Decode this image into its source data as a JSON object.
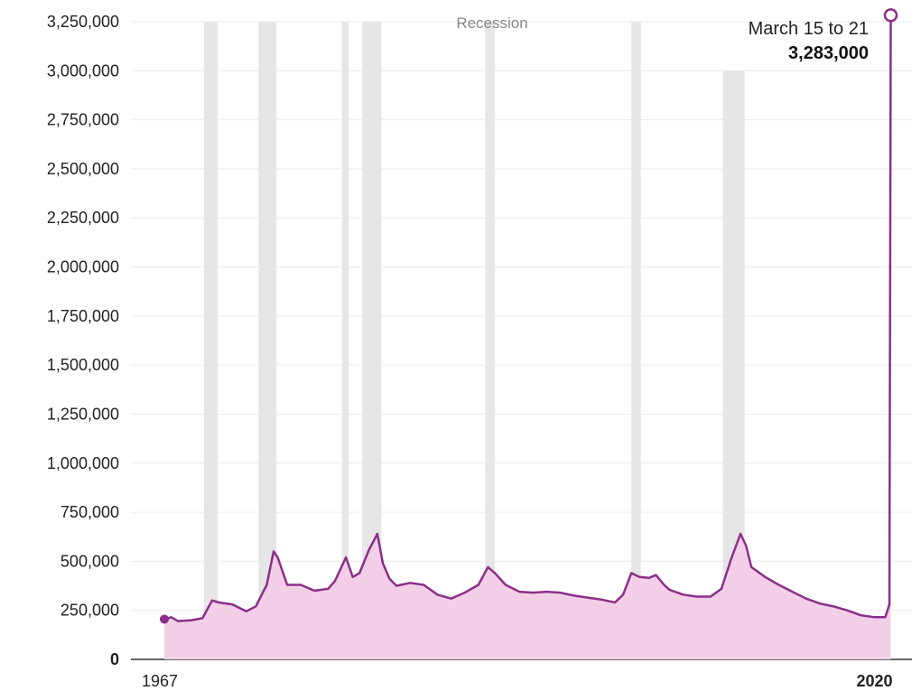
{
  "chart_data": {
    "type": "area",
    "title": "",
    "xlabel": "",
    "ylabel": "",
    "x_range": [
      1967,
      2020.3
    ],
    "ylim": [
      0,
      3250000
    ],
    "y_ticks": [
      {
        "value": 0,
        "label": "0"
      },
      {
        "value": 250000,
        "label": "250,000"
      },
      {
        "value": 500000,
        "label": "500,000"
      },
      {
        "value": 750000,
        "label": "750,000"
      },
      {
        "value": 1000000,
        "label": "1,000,000"
      },
      {
        "value": 1250000,
        "label": "1,250,000"
      },
      {
        "value": 1500000,
        "label": "1,500,000"
      },
      {
        "value": 1750000,
        "label": "1,750,000"
      },
      {
        "value": 2000000,
        "label": "2,000,000"
      },
      {
        "value": 2250000,
        "label": "2,250,000"
      },
      {
        "value": 2500000,
        "label": "2,500,000"
      },
      {
        "value": 2750000,
        "label": "2,750,000"
      },
      {
        "value": 3000000,
        "label": "3,000,000"
      },
      {
        "value": 3250000,
        "label": "3,250,000"
      }
    ],
    "x_ticks": [
      {
        "value": 1967,
        "label": "1967",
        "bold": false
      },
      {
        "value": 2020,
        "label": "2020",
        "bold": true
      }
    ],
    "recession_label": "Recession",
    "recessions": [
      {
        "start": 1969.9,
        "end": 1970.9
      },
      {
        "start": 1973.9,
        "end": 1975.2
      },
      {
        "start": 1980.0,
        "end": 1980.5
      },
      {
        "start": 1981.5,
        "end": 1982.9
      },
      {
        "start": 1990.5,
        "end": 1991.2
      },
      {
        "start": 2001.2,
        "end": 2001.9
      },
      {
        "start": 2007.9,
        "end": 2009.5
      }
    ],
    "series": [
      {
        "color": "#8b2f88",
        "fill": "#f2cfe6",
        "x": [
          1967.0,
          1967.5,
          1968.0,
          1969.0,
          1969.8,
          1970.5,
          1971.0,
          1972.0,
          1973.0,
          1973.7,
          1974.5,
          1975.0,
          1975.3,
          1976.0,
          1977.0,
          1978.0,
          1979.0,
          1979.5,
          1980.3,
          1980.8,
          1981.3,
          1982.0,
          1982.6,
          1983.0,
          1983.5,
          1984.0,
          1985.0,
          1986.0,
          1987.0,
          1988.0,
          1989.0,
          1990.0,
          1990.7,
          1991.2,
          1992.0,
          1993.0,
          1994.0,
          1995.0,
          1996.0,
          1997.0,
          1998.0,
          1999.0,
          2000.0,
          2000.6,
          2001.2,
          2001.8,
          2002.5,
          2003.0,
          2003.6,
          2004.0,
          2005.0,
          2006.0,
          2007.0,
          2007.8,
          2008.5,
          2009.2,
          2009.6,
          2010.0,
          2011.0,
          2012.0,
          2013.0,
          2014.0,
          2015.0,
          2016.0,
          2017.0,
          2018.0,
          2019.0,
          2019.8,
          2020.1,
          2020.2
        ],
        "values": [
          205000,
          215000,
          195000,
          200000,
          210000,
          300000,
          290000,
          280000,
          245000,
          270000,
          380000,
          550000,
          520000,
          380000,
          380000,
          350000,
          360000,
          400000,
          520000,
          420000,
          440000,
          560000,
          640000,
          490000,
          410000,
          375000,
          390000,
          380000,
          330000,
          310000,
          340000,
          380000,
          470000,
          440000,
          380000,
          345000,
          340000,
          345000,
          340000,
          325000,
          315000,
          305000,
          290000,
          330000,
          440000,
          420000,
          415000,
          430000,
          380000,
          355000,
          330000,
          320000,
          320000,
          360000,
          510000,
          640000,
          580000,
          470000,
          420000,
          380000,
          345000,
          310000,
          285000,
          270000,
          250000,
          225000,
          215000,
          215000,
          280000,
          3283000
        ]
      }
    ],
    "annotation": {
      "date_label": "March 15 to 21",
      "value_label": "3,283,000",
      "value": 3283000
    }
  }
}
